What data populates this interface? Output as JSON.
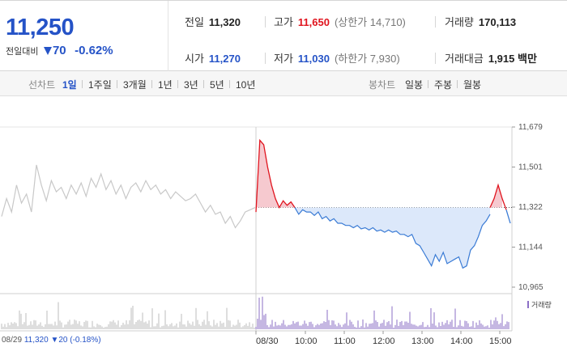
{
  "summary": {
    "price": "11,250",
    "change_label": "전일대비",
    "change_value": "70",
    "change_pct": "-0.62%"
  },
  "stats": {
    "prev_close": {
      "label": "전일",
      "value": "11,320"
    },
    "high": {
      "label": "고가",
      "value": "11,650",
      "sub": "(상한가 14,710)"
    },
    "volume": {
      "label": "거래량",
      "value": "170,113"
    },
    "open": {
      "label": "시가",
      "value": "11,270"
    },
    "low": {
      "label": "저가",
      "value": "11,030",
      "sub": "(하한가 7,930)"
    },
    "trade_amount": {
      "label": "거래대금",
      "value": "1,915 백만"
    }
  },
  "period_bar": {
    "line_label": "선차트",
    "line_periods": [
      "1일",
      "1주일",
      "3개월",
      "1년",
      "3년",
      "5년",
      "10년"
    ],
    "active_period": "1일",
    "candle_label": "봉차트",
    "candle_periods": [
      "일봉",
      "주봉",
      "월봉"
    ]
  },
  "colors": {
    "accent_blue": "#2553c7",
    "up_red": "#e0141e",
    "line_blue": "#3a7bd5",
    "fill_blue": "#dce8fa",
    "fill_red": "#f6c9cf",
    "prev_gray": "#c8c8c8",
    "volume_purple": "#8b6fc6",
    "volume_gray": "#bdbdbd"
  },
  "chart_data": {
    "type": "line",
    "y_ticks": [
      "11,679",
      "11,501",
      "11,322",
      "11,144",
      "10,965"
    ],
    "ylim": [
      10965,
      11679
    ],
    "baseline": 11320,
    "x_labels": [
      "08/29",
      "08/30",
      "10:00",
      "11:00",
      "12:00",
      "13:00",
      "14:00",
      "15:00"
    ],
    "prev_day": {
      "date": "08/29",
      "close": "11,320",
      "change": "20",
      "change_pct": "(-0.18%)",
      "values": [
        11280,
        11360,
        11300,
        11420,
        11340,
        11380,
        11300,
        11510,
        11420,
        11350,
        11440,
        11390,
        11410,
        11360,
        11420,
        11380,
        11430,
        11370,
        11450,
        11410,
        11470,
        11400,
        11440,
        11380,
        11420,
        11360,
        11410,
        11430,
        11390,
        11440,
        11400,
        11420,
        11380,
        11400,
        11360,
        11390,
        11370,
        11350,
        11360,
        11380,
        11340,
        11300,
        11330,
        11290,
        11300,
        11250,
        11280,
        11230,
        11260,
        11300,
        11310,
        11320
      ]
    },
    "today": {
      "date": "08/30",
      "above_values": [
        11300,
        11620,
        11600,
        11500,
        11420,
        11360,
        11320,
        11350,
        11330,
        11345,
        11320
      ],
      "values": [
        11320,
        11290,
        11310,
        11300,
        11300,
        11285,
        11300,
        11270,
        11280,
        11260,
        11270,
        11250,
        11250,
        11240,
        11240,
        11230,
        11240,
        11225,
        11230,
        11220,
        11230,
        11215,
        11220,
        11210,
        11220,
        11210,
        11215,
        11200,
        11200,
        11190,
        11200,
        11160,
        11150,
        11120,
        11090,
        11060,
        11110,
        11080,
        11120,
        11070,
        11080,
        11090,
        11100,
        11050,
        11060,
        11130,
        11150,
        11190,
        11240,
        11260,
        11290
      ],
      "tail_values": [
        11320,
        11360,
        11420,
        11360,
        11310,
        11250
      ]
    },
    "volume_legend": "거래량"
  }
}
